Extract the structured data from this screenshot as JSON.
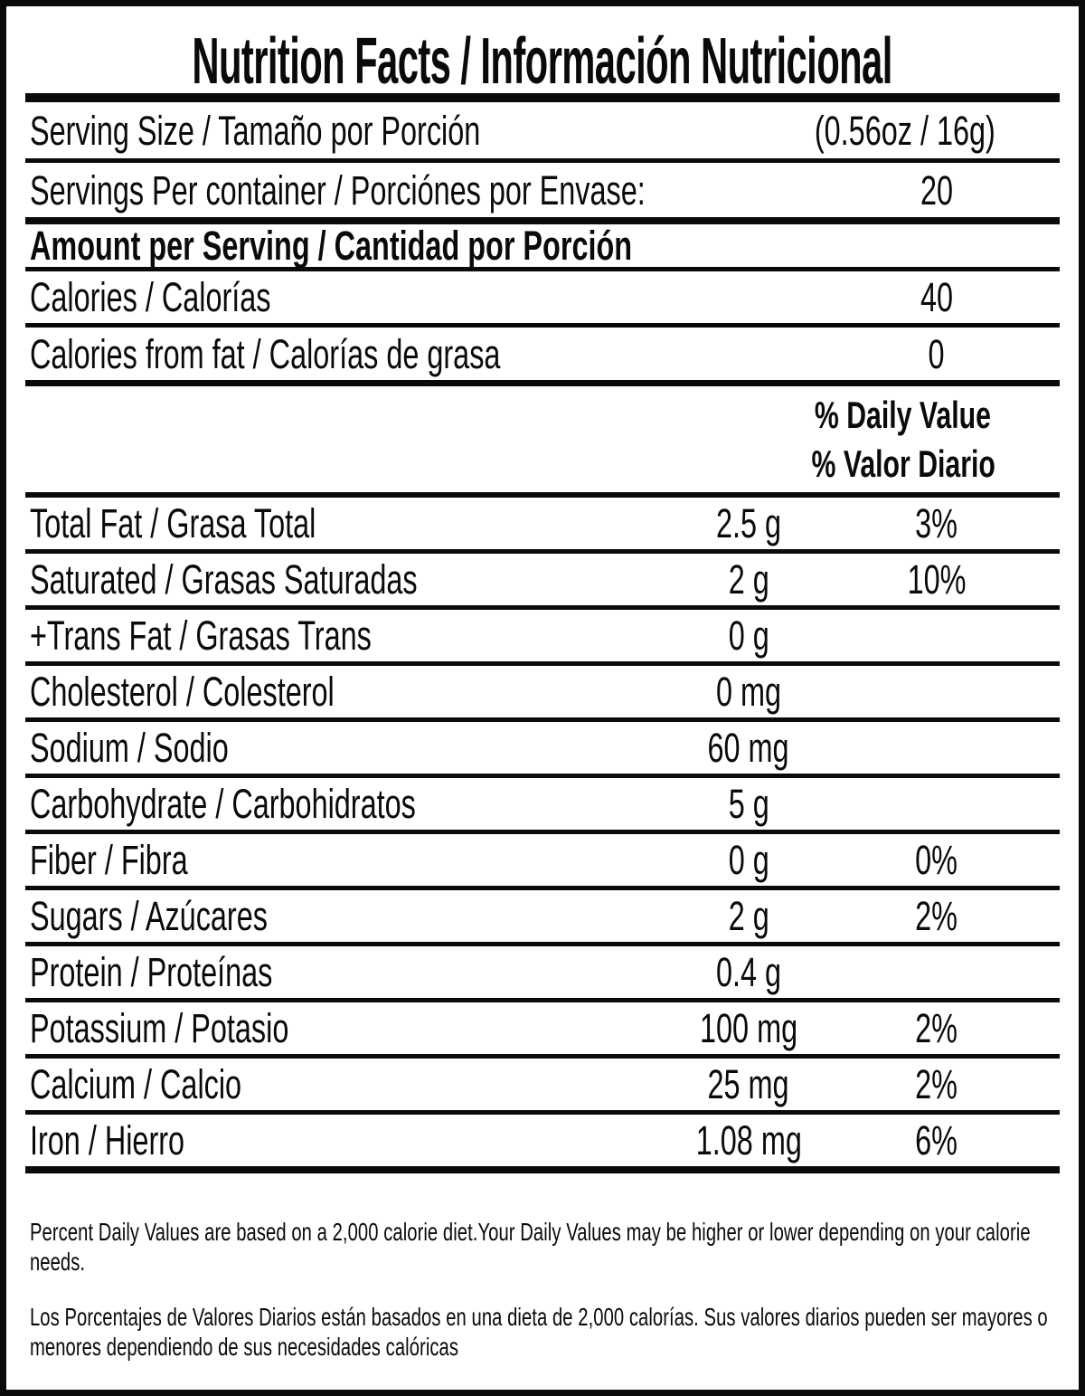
{
  "colors": {
    "ink": "#0a0a0a",
    "paper": "#ffffff"
  },
  "title": "Nutrition Facts / Información Nutricional",
  "serving_info": {
    "serving_size": {
      "label": "Serving Size / Tamaño por Porción",
      "value": "(0.56oz / 16g)"
    },
    "servings_per_container": {
      "label": "Servings Per container / Porciónes por Envase:",
      "value": "20"
    }
  },
  "amount_per_serving_header": "Amount per Serving / Cantidad por Porción",
  "calories": {
    "label": "Calories / Calorías",
    "value": "40"
  },
  "calories_from_fat": {
    "label": "Calories from fat / Calorías de grasa",
    "value": "0"
  },
  "daily_value_header": {
    "line1": "% Daily Value",
    "line2": "% Valor Diario"
  },
  "nutrients": [
    {
      "label": "Total Fat / Grasa Total",
      "amount": "2.5 g",
      "dv": "3%"
    },
    {
      "label": "Saturated / Grasas Saturadas",
      "amount": "2 g",
      "dv": "10%"
    },
    {
      "label": "+Trans Fat / Grasas Trans",
      "amount": "0 g",
      "dv": ""
    },
    {
      "label": "Cholesterol / Colesterol",
      "amount": "0 mg",
      "dv": ""
    },
    {
      "label": "Sodium / Sodio",
      "amount": "60 mg",
      "dv": ""
    },
    {
      "label": "Carbohydrate / Carbohidratos",
      "amount": "5 g",
      "dv": ""
    },
    {
      "label": "Fiber / Fibra",
      "amount": "0 g",
      "dv": "0%"
    },
    {
      "label": "Sugars / Azúcares",
      "amount": "2 g",
      "dv": "2%"
    },
    {
      "label": "Protein / Proteínas",
      "amount": "0.4 g",
      "dv": ""
    },
    {
      "label": "Potassium / Potasio",
      "amount": "100 mg",
      "dv": "2%"
    },
    {
      "label": "Calcium / Calcio",
      "amount": "25 mg",
      "dv": "2%"
    },
    {
      "label": "Iron / Hierro",
      "amount": "1.08 mg",
      "dv": "6%"
    }
  ],
  "footnotes": {
    "english": "Percent Daily Values are based on a 2,000 calorie diet.Your Daily Values may be higher or lower depending on your calorie needs.",
    "spanish": "Los Porcentajes de Valores Diarios están basados en una dieta de 2,000 calorías. Sus valores diarios pueden ser mayores o menores dependiendo de sus necesidades calóricas"
  }
}
